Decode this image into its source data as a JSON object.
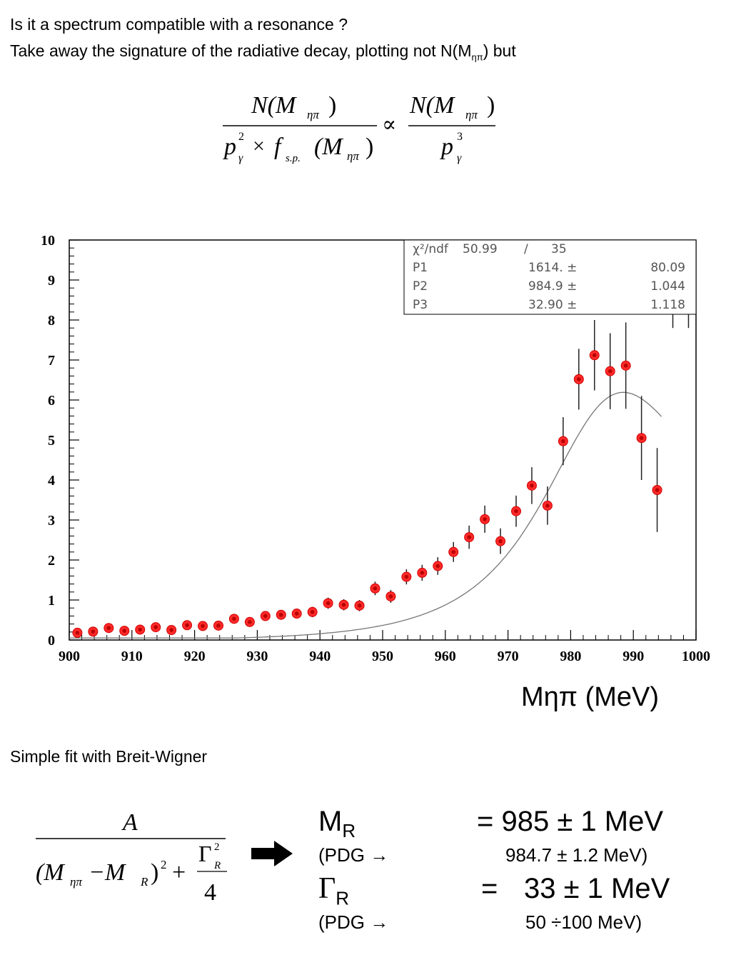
{
  "intro": {
    "line1": "Is it a spectrum compatible with a resonance ?",
    "line2_main": "Take away the signature of the radiative decay, plotting not N(M",
    "line2_sub": "ηπ",
    "line2_tail": ") but"
  },
  "formula_top": {
    "lhs_num": "N(M",
    "lhs_num_sub": "ηπ",
    "lhs_num_close": ")",
    "lhs_den_p": "p",
    "lhs_den_p_sup": "2",
    "lhs_den_p_sub": "γ",
    "lhs_den_times": "×",
    "lhs_den_f": "f",
    "lhs_den_f_sub": "s.p.",
    "lhs_den_m": "(M",
    "lhs_den_m_sub": "ηπ",
    "lhs_den_m_close": ")",
    "propto": "∝",
    "rhs_num": "N(M",
    "rhs_num_sub": "ηπ",
    "rhs_num_close": ")",
    "rhs_den_p": "p",
    "rhs_den_p_sup": "3",
    "rhs_den_p_sub": "γ"
  },
  "chart_data": {
    "type": "scatter",
    "xlabel": "Mηπ (MeV)",
    "xlim": [
      900,
      1000
    ],
    "ylim": [
      0,
      10
    ],
    "x_ticks": [
      "900",
      "910",
      "920",
      "930",
      "940",
      "950",
      "960",
      "970",
      "980",
      "990",
      "1000"
    ],
    "y_ticks": [
      "0",
      "1",
      "2",
      "3",
      "4",
      "5",
      "6",
      "7",
      "8",
      "9",
      "10"
    ],
    "points": [
      {
        "x": 901.3,
        "y": 0.18,
        "err": 0.08
      },
      {
        "x": 903.8,
        "y": 0.21,
        "err": 0.08
      },
      {
        "x": 906.3,
        "y": 0.3,
        "err": 0.09
      },
      {
        "x": 908.8,
        "y": 0.23,
        "err": 0.08
      },
      {
        "x": 911.3,
        "y": 0.26,
        "err": 0.09
      },
      {
        "x": 913.8,
        "y": 0.32,
        "err": 0.09
      },
      {
        "x": 916.3,
        "y": 0.25,
        "err": 0.09
      },
      {
        "x": 918.8,
        "y": 0.37,
        "err": 0.1
      },
      {
        "x": 921.3,
        "y": 0.35,
        "err": 0.1
      },
      {
        "x": 923.8,
        "y": 0.36,
        "err": 0.1
      },
      {
        "x": 926.3,
        "y": 0.53,
        "err": 0.11
      },
      {
        "x": 928.8,
        "y": 0.45,
        "err": 0.11
      },
      {
        "x": 931.3,
        "y": 0.6,
        "err": 0.12
      },
      {
        "x": 933.8,
        "y": 0.63,
        "err": 0.12
      },
      {
        "x": 936.3,
        "y": 0.66,
        "err": 0.12
      },
      {
        "x": 938.8,
        "y": 0.7,
        "err": 0.13
      },
      {
        "x": 941.3,
        "y": 0.92,
        "err": 0.14
      },
      {
        "x": 943.8,
        "y": 0.88,
        "err": 0.14
      },
      {
        "x": 946.3,
        "y": 0.86,
        "err": 0.14
      },
      {
        "x": 948.8,
        "y": 1.29,
        "err": 0.17
      },
      {
        "x": 951.3,
        "y": 1.09,
        "err": 0.16
      },
      {
        "x": 953.8,
        "y": 1.58,
        "err": 0.19
      },
      {
        "x": 956.3,
        "y": 1.68,
        "err": 0.2
      },
      {
        "x": 958.8,
        "y": 1.85,
        "err": 0.22
      },
      {
        "x": 961.3,
        "y": 2.2,
        "err": 0.25
      },
      {
        "x": 963.8,
        "y": 2.57,
        "err": 0.29
      },
      {
        "x": 966.3,
        "y": 3.02,
        "err": 0.34
      },
      {
        "x": 968.8,
        "y": 2.47,
        "err": 0.32
      },
      {
        "x": 971.3,
        "y": 3.22,
        "err": 0.39
      },
      {
        "x": 973.8,
        "y": 3.86,
        "err": 0.46
      },
      {
        "x": 976.3,
        "y": 3.36,
        "err": 0.48
      },
      {
        "x": 978.8,
        "y": 4.97,
        "err": 0.6
      },
      {
        "x": 981.3,
        "y": 6.52,
        "err": 0.76
      },
      {
        "x": 983.8,
        "y": 7.12,
        "err": 0.88
      },
      {
        "x": 986.3,
        "y": 6.72,
        "err": 0.95
      },
      {
        "x": 988.8,
        "y": 6.86,
        "err": 1.08
      },
      {
        "x": 991.3,
        "y": 5.05,
        "err": 1.05
      },
      {
        "x": 993.8,
        "y": 3.75,
        "err": 1.05
      }
    ],
    "fit": {
      "x_start": 900,
      "x_end": 994.5,
      "peak": 985,
      "width": 33,
      "amplitude": 5.94
    },
    "stats_box": {
      "rows": [
        [
          "χ²/ndf",
          "50.99",
          "/",
          "35"
        ],
        [
          "P1",
          "1614. ±",
          "80.09"
        ],
        [
          "P2",
          "984.9 ±",
          "1.044"
        ],
        [
          "P3",
          "32.90 ±",
          "1.118"
        ]
      ]
    },
    "overflow_points": [
      {
        "x": 996.3
      },
      {
        "x": 998.8
      }
    ]
  },
  "subtitle": "Simple fit with Breit-Wigner",
  "bw_formula": {
    "num": "A",
    "den_open": "(M",
    "den_sub1": "ηπ",
    "den_minus": "−M",
    "den_sub2": "R",
    "den_close": ")",
    "den_sup": "2",
    "plus": "+",
    "gamma": "Γ",
    "gamma_sup": "2",
    "gamma_sub": "R",
    "four": "4"
  },
  "results": {
    "mr_label": "M",
    "mr_sub": "R",
    "mr_value": "= 985 ± 1 MeV",
    "pdg1_label": "(PDG →",
    "pdg1_value": "984.7 ± 1.2 MeV)",
    "gr_label": "Γ",
    "gr_sub": "R",
    "gr_eq": "=",
    "gr_value": "33 ± 1 MeV",
    "pdg2_label": "(PDG →",
    "pdg2_value": "50 ÷100  MeV)"
  }
}
